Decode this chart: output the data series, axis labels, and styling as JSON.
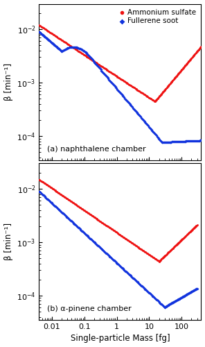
{
  "title_a": "(a) naphthalene chamber",
  "title_b": "(b) α-pinene chamber",
  "xlabel": "Single-particle Mass [fg]",
  "ylabel": "β [min⁻¹]",
  "xlim": [
    0.004,
    400
  ],
  "ylim": [
    3.5e-05,
    0.03
  ],
  "legend_labels": [
    "Ammonium sulfate",
    "Fullerene soot"
  ],
  "colors": [
    "#ee1111",
    "#1133dd"
  ],
  "background_color": "#ffffff",
  "dot_size_AS": 4,
  "dot_size_FS": 4,
  "n_points": 300
}
